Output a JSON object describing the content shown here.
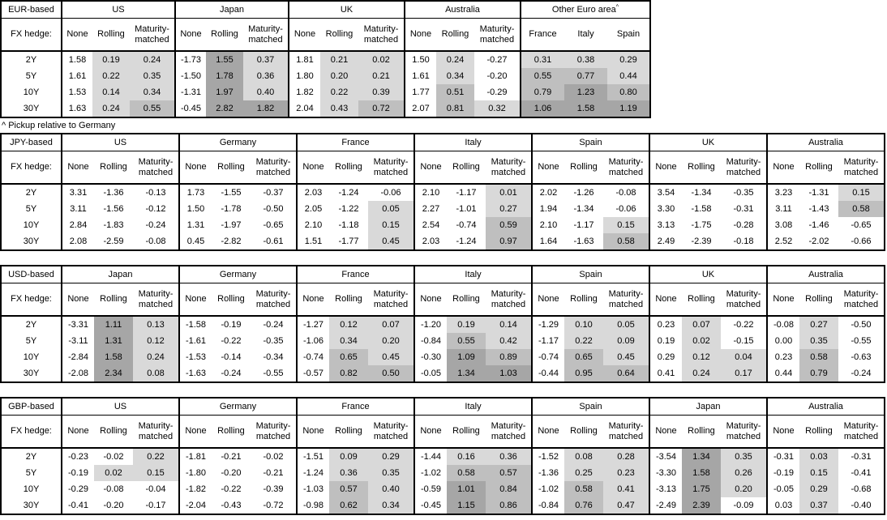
{
  "fx_hedge_label": "FX hedge:",
  "row_labels": [
    "2Y",
    "5Y",
    "10Y",
    "30Y"
  ],
  "footnote": "^ Pickup relative to Germany",
  "shading": {
    "description": "cell background derived from cell value; None column never shaded",
    "colors": {
      "negative": "#ffffff",
      "low": "#d9d9d9",
      "mid": "#bfbfbf",
      "high": "#a6a6a6"
    },
    "thresholds": {
      "low_min": 0,
      "mid_min": 0.5,
      "high_min": 1.0
    }
  },
  "tables": [
    {
      "base_label": "EUR-based",
      "groups": [
        {
          "name": "US",
          "cols": [
            "None",
            "Rolling",
            "Maturity-matched"
          ],
          "shade": [
            false,
            true,
            true
          ],
          "rows": [
            [
              "1.58",
              "0.19",
              "0.24"
            ],
            [
              "1.61",
              "0.22",
              "0.35"
            ],
            [
              "1.53",
              "0.14",
              "0.34"
            ],
            [
              "1.63",
              "0.24",
              "0.55"
            ]
          ]
        },
        {
          "name": "Japan",
          "cols": [
            "None",
            "Rolling",
            "Maturity-matched"
          ],
          "shade": [
            false,
            true,
            true
          ],
          "rows": [
            [
              "-1.73",
              "1.55",
              "0.37"
            ],
            [
              "-1.50",
              "1.78",
              "0.36"
            ],
            [
              "-1.31",
              "1.97",
              "0.40"
            ],
            [
              "-0.45",
              "2.82",
              "1.82"
            ]
          ]
        },
        {
          "name": "UK",
          "cols": [
            "None",
            "Rolling",
            "Maturity-matched"
          ],
          "shade": [
            false,
            true,
            true
          ],
          "rows": [
            [
              "1.81",
              "0.21",
              "0.02"
            ],
            [
              "1.80",
              "0.20",
              "0.21"
            ],
            [
              "1.82",
              "0.22",
              "0.39"
            ],
            [
              "2.04",
              "0.43",
              "0.72"
            ]
          ]
        },
        {
          "name": "Australia",
          "cols": [
            "None",
            "Rolling",
            "Maturity-matched"
          ],
          "shade": [
            false,
            true,
            true
          ],
          "rows": [
            [
              "1.50",
              "0.24",
              "-0.27"
            ],
            [
              "1.61",
              "0.34",
              "-0.20"
            ],
            [
              "1.77",
              "0.51",
              "-0.29"
            ],
            [
              "2.07",
              "0.81",
              "0.32"
            ]
          ]
        },
        {
          "name": "Other Euro area",
          "sup": "^",
          "cols": [
            "France",
            "Italy",
            "Spain"
          ],
          "shade": [
            true,
            true,
            true
          ],
          "rows": [
            [
              "0.31",
              "0.38",
              "0.29"
            ],
            [
              "0.55",
              "0.77",
              "0.44"
            ],
            [
              "0.79",
              "1.23",
              "0.80"
            ],
            [
              "1.06",
              "1.58",
              "1.19"
            ]
          ]
        }
      ]
    },
    {
      "base_label": "JPY-based",
      "groups": [
        {
          "name": "US",
          "cols": [
            "None",
            "Rolling",
            "Maturity-matched"
          ],
          "shade": [
            false,
            true,
            true
          ],
          "rows": [
            [
              "3.31",
              "-1.36",
              "-0.13"
            ],
            [
              "3.11",
              "-1.56",
              "-0.12"
            ],
            [
              "2.84",
              "-1.83",
              "-0.24"
            ],
            [
              "2.08",
              "-2.59",
              "-0.08"
            ]
          ]
        },
        {
          "name": "Germany",
          "cols": [
            "None",
            "Rolling",
            "Maturity-matched"
          ],
          "shade": [
            false,
            true,
            true
          ],
          "rows": [
            [
              "1.73",
              "-1.55",
              "-0.37"
            ],
            [
              "1.50",
              "-1.78",
              "-0.50"
            ],
            [
              "1.31",
              "-1.97",
              "-0.65"
            ],
            [
              "0.45",
              "-2.82",
              "-0.61"
            ]
          ]
        },
        {
          "name": "France",
          "cols": [
            "None",
            "Rolling",
            "Maturity-matched"
          ],
          "shade": [
            false,
            true,
            true
          ],
          "rows": [
            [
              "2.03",
              "-1.24",
              "-0.06"
            ],
            [
              "2.05",
              "-1.22",
              "0.05"
            ],
            [
              "2.10",
              "-1.18",
              "0.15"
            ],
            [
              "1.51",
              "-1.77",
              "0.45"
            ]
          ]
        },
        {
          "name": "Italy",
          "cols": [
            "None",
            "Rolling",
            "Maturity-matched"
          ],
          "shade": [
            false,
            true,
            true
          ],
          "rows": [
            [
              "2.10",
              "-1.17",
              "0.01"
            ],
            [
              "2.27",
              "-1.01",
              "0.27"
            ],
            [
              "2.54",
              "-0.74",
              "0.59"
            ],
            [
              "2.03",
              "-1.24",
              "0.97"
            ]
          ]
        },
        {
          "name": "Spain",
          "cols": [
            "None",
            "Rolling",
            "Maturity-matched"
          ],
          "shade": [
            false,
            true,
            true
          ],
          "rows": [
            [
              "2.02",
              "-1.26",
              "-0.08"
            ],
            [
              "1.94",
              "-1.34",
              "-0.06"
            ],
            [
              "2.10",
              "-1.17",
              "0.15"
            ],
            [
              "1.64",
              "-1.63",
              "0.58"
            ]
          ]
        },
        {
          "name": "UK",
          "cols": [
            "None",
            "Rolling",
            "Maturity-matched"
          ],
          "shade": [
            false,
            true,
            true
          ],
          "rows": [
            [
              "3.54",
              "-1.34",
              "-0.35"
            ],
            [
              "3.30",
              "-1.58",
              "-0.31"
            ],
            [
              "3.13",
              "-1.75",
              "-0.28"
            ],
            [
              "2.49",
              "-2.39",
              "-0.18"
            ]
          ]
        },
        {
          "name": "Australia",
          "cols": [
            "None",
            "Rolling",
            "Maturity-matched"
          ],
          "shade": [
            false,
            true,
            true
          ],
          "rows": [
            [
              "3.23",
              "-1.31",
              "0.15"
            ],
            [
              "3.11",
              "-1.43",
              "0.58"
            ],
            [
              "3.08",
              "-1.46",
              "-0.65"
            ],
            [
              "2.52",
              "-2.02",
              "-0.66"
            ]
          ]
        }
      ]
    },
    {
      "base_label": "USD-based",
      "groups": [
        {
          "name": "Japan",
          "cols": [
            "None",
            "Rolling",
            "Maturity-matched"
          ],
          "shade": [
            false,
            true,
            true
          ],
          "rows": [
            [
              "-3.31",
              "1.11",
              "0.13"
            ],
            [
              "-3.11",
              "1.31",
              "0.12"
            ],
            [
              "-2.84",
              "1.58",
              "0.24"
            ],
            [
              "-2.08",
              "2.34",
              "0.08"
            ]
          ]
        },
        {
          "name": "Germany",
          "cols": [
            "None",
            "Rolling",
            "Maturity-matched"
          ],
          "shade": [
            false,
            true,
            true
          ],
          "rows": [
            [
              "-1.58",
              "-0.19",
              "-0.24"
            ],
            [
              "-1.61",
              "-0.22",
              "-0.35"
            ],
            [
              "-1.53",
              "-0.14",
              "-0.34"
            ],
            [
              "-1.63",
              "-0.24",
              "-0.55"
            ]
          ]
        },
        {
          "name": "France",
          "cols": [
            "None",
            "Rolling",
            "Maturity-matched"
          ],
          "shade": [
            false,
            true,
            true
          ],
          "rows": [
            [
              "-1.27",
              "0.12",
              "0.07"
            ],
            [
              "-1.06",
              "0.34",
              "0.20"
            ],
            [
              "-0.74",
              "0.65",
              "0.45"
            ],
            [
              "-0.57",
              "0.82",
              "0.50"
            ]
          ]
        },
        {
          "name": "Italy",
          "cols": [
            "None",
            "Rolling",
            "Maturity-matched"
          ],
          "shade": [
            false,
            true,
            true
          ],
          "rows": [
            [
              "-1.20",
              "0.19",
              "0.14"
            ],
            [
              "-0.84",
              "0.55",
              "0.42"
            ],
            [
              "-0.30",
              "1.09",
              "0.89"
            ],
            [
              "-0.05",
              "1.34",
              "1.03"
            ]
          ]
        },
        {
          "name": "Spain",
          "cols": [
            "None",
            "Rolling",
            "Maturity-matched"
          ],
          "shade": [
            false,
            true,
            true
          ],
          "rows": [
            [
              "-1.29",
              "0.10",
              "0.05"
            ],
            [
              "-1.17",
              "0.22",
              "0.09"
            ],
            [
              "-0.74",
              "0.65",
              "0.45"
            ],
            [
              "-0.44",
              "0.95",
              "0.64"
            ]
          ]
        },
        {
          "name": "UK",
          "cols": [
            "None",
            "Rolling",
            "Maturity-matched"
          ],
          "shade": [
            false,
            true,
            true
          ],
          "rows": [
            [
              "0.23",
              "0.07",
              "-0.22"
            ],
            [
              "0.19",
              "0.02",
              "-0.15"
            ],
            [
              "0.29",
              "0.12",
              "0.04"
            ],
            [
              "0.41",
              "0.24",
              "0.17"
            ]
          ]
        },
        {
          "name": "Australia",
          "cols": [
            "None",
            "Rolling",
            "Maturity-matched"
          ],
          "shade": [
            false,
            true,
            true
          ],
          "rows": [
            [
              "-0.08",
              "0.27",
              "-0.50"
            ],
            [
              "0.00",
              "0.35",
              "-0.55"
            ],
            [
              "0.23",
              "0.58",
              "-0.63"
            ],
            [
              "0.44",
              "0.79",
              "-0.24"
            ]
          ]
        }
      ]
    },
    {
      "base_label": "GBP-based",
      "groups": [
        {
          "name": "US",
          "cols": [
            "None",
            "Rolling",
            "Maturity-matched"
          ],
          "shade": [
            false,
            true,
            true
          ],
          "rows": [
            [
              "-0.23",
              "-0.02",
              "0.22"
            ],
            [
              "-0.19",
              "0.02",
              "0.15"
            ],
            [
              "-0.29",
              "-0.08",
              "-0.04"
            ],
            [
              "-0.41",
              "-0.20",
              "-0.17"
            ]
          ]
        },
        {
          "name": "Germany",
          "cols": [
            "None",
            "Rolling",
            "Maturity-matched"
          ],
          "shade": [
            false,
            true,
            true
          ],
          "rows": [
            [
              "-1.81",
              "-0.21",
              "-0.02"
            ],
            [
              "-1.80",
              "-0.20",
              "-0.21"
            ],
            [
              "-1.82",
              "-0.22",
              "-0.39"
            ],
            [
              "-2.04",
              "-0.43",
              "-0.72"
            ]
          ]
        },
        {
          "name": "France",
          "cols": [
            "None",
            "Rolling",
            "Maturity-matched"
          ],
          "shade": [
            false,
            true,
            true
          ],
          "rows": [
            [
              "-1.51",
              "0.09",
              "0.29"
            ],
            [
              "-1.24",
              "0.36",
              "0.35"
            ],
            [
              "-1.03",
              "0.57",
              "0.40"
            ],
            [
              "-0.98",
              "0.62",
              "0.34"
            ]
          ]
        },
        {
          "name": "Italy",
          "cols": [
            "None",
            "Rolling",
            "Maturity-matched"
          ],
          "shade": [
            false,
            true,
            true
          ],
          "rows": [
            [
              "-1.44",
              "0.16",
              "0.36"
            ],
            [
              "-1.02",
              "0.58",
              "0.57"
            ],
            [
              "-0.59",
              "1.01",
              "0.84"
            ],
            [
              "-0.45",
              "1.15",
              "0.86"
            ]
          ]
        },
        {
          "name": "Spain",
          "cols": [
            "None",
            "Rolling",
            "Maturity-matched"
          ],
          "shade": [
            false,
            true,
            true
          ],
          "rows": [
            [
              "-1.52",
              "0.08",
              "0.28"
            ],
            [
              "-1.36",
              "0.25",
              "0.23"
            ],
            [
              "-1.02",
              "0.58",
              "0.41"
            ],
            [
              "-0.84",
              "0.76",
              "0.47"
            ]
          ]
        },
        {
          "name": "Japan",
          "cols": [
            "None",
            "Rolling",
            "Maturity-matched"
          ],
          "shade": [
            false,
            true,
            true
          ],
          "rows": [
            [
              "-3.54",
              "1.34",
              "0.35"
            ],
            [
              "-3.30",
              "1.58",
              "0.26"
            ],
            [
              "-3.13",
              "1.75",
              "0.20"
            ],
            [
              "-2.49",
              "2.39",
              "-0.09"
            ]
          ]
        },
        {
          "name": "Australia",
          "cols": [
            "None",
            "Rolling",
            "Maturity-matched"
          ],
          "shade": [
            false,
            true,
            true
          ],
          "rows": [
            [
              "-0.31",
              "0.03",
              "-0.31"
            ],
            [
              "-0.19",
              "0.15",
              "-0.41"
            ],
            [
              "-0.05",
              "0.29",
              "-0.68"
            ],
            [
              "0.03",
              "0.37",
              "-0.40"
            ]
          ]
        }
      ]
    }
  ]
}
